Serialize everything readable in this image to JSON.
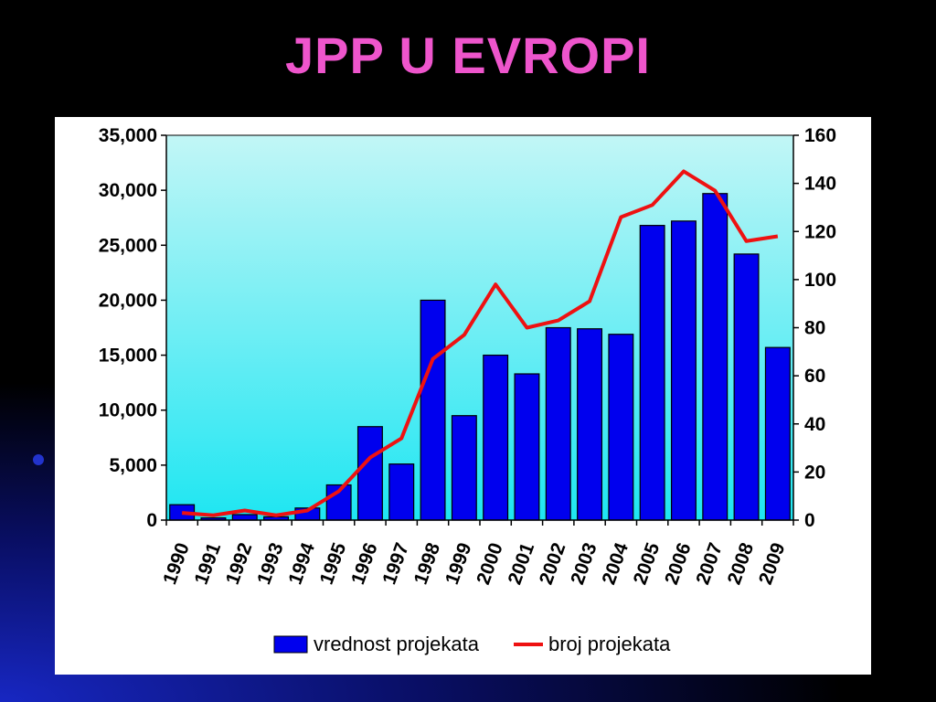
{
  "slide": {
    "title": "JPP U EVROPI"
  },
  "colors": {
    "background": "#000000",
    "title": "#ee55cc",
    "bar_fill": "#0000ee",
    "line": "#ee1111",
    "plot_top": "#c2f6f6",
    "plot_bottom": "#1ee6f2"
  },
  "chart_data": {
    "type": "bar",
    "combo": "bar-line dual axis",
    "categories": [
      "1990",
      "1991",
      "1992",
      "1993",
      "1994",
      "1995",
      "1996",
      "1997",
      "1998",
      "1999",
      "2000",
      "2001",
      "2002",
      "2003",
      "2004",
      "2005",
      "2006",
      "2007",
      "2008",
      "2009"
    ],
    "series": [
      {
        "name": "vrednost projekata",
        "type": "bar",
        "axis": "left",
        "values": [
          1400,
          200,
          500,
          300,
          1100,
          3200,
          8500,
          5100,
          20000,
          9500,
          15000,
          13300,
          17500,
          17400,
          16900,
          26800,
          27200,
          29700,
          24200,
          15700
        ]
      },
      {
        "name": "broj projekata",
        "type": "line",
        "axis": "right",
        "values": [
          3,
          2,
          4,
          2,
          4,
          12,
          26,
          34,
          67,
          77,
          98,
          80,
          83,
          91,
          126,
          131,
          145,
          137,
          116,
          118
        ]
      }
    ],
    "y_left": {
      "min": 0,
      "max": 35000,
      "ticks": [
        "0",
        "5,000",
        "10,000",
        "15,000",
        "20,000",
        "25,000",
        "30,000",
        "35,000"
      ]
    },
    "y_right": {
      "min": 0,
      "max": 160,
      "ticks": [
        "0",
        "20",
        "40",
        "60",
        "80",
        "100",
        "120",
        "140",
        "160"
      ]
    },
    "grid": false,
    "legend_position": "bottom"
  }
}
